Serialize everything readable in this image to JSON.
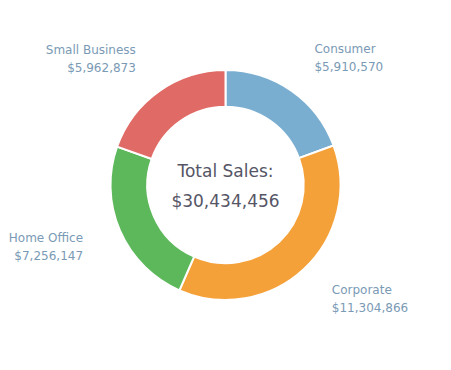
{
  "chart_data": {
    "type": "donut",
    "categories": [
      "Consumer",
      "Corporate",
      "Home Office",
      "Small Business"
    ],
    "values": [
      5910570,
      11304866,
      7256147,
      5962873
    ],
    "value_labels": [
      "$5,910,570",
      "$11,304,866",
      "$7,256,147",
      "$5,962,873"
    ],
    "colors": [
      "#7aaed0",
      "#f5a13a",
      "#5db85c",
      "#e06b66"
    ],
    "annotations": [
      "Total Sales:",
      "$30,434,456"
    ],
    "data_labels": true
  }
}
